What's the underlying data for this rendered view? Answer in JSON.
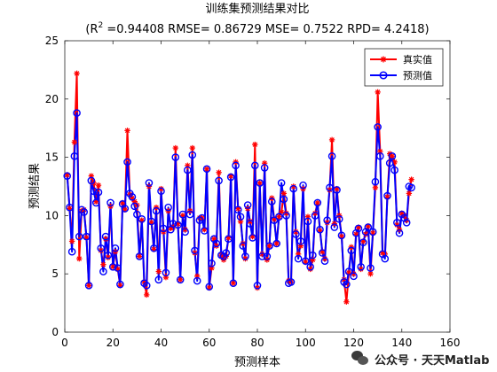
{
  "chart_data": {
    "type": "line",
    "title": "训练集预测结果对比",
    "subtitle_parts": {
      "prefix": "(R",
      "sup": "2",
      "rest": " =0.94408 RMSE= 0.86729 MSE= 0.7522 RPD= 4.2418)"
    },
    "xlabel": "预测样本",
    "ylabel": "预测结果",
    "xlim": [
      0,
      160
    ],
    "ylim": [
      0,
      25
    ],
    "xticks": [
      "0",
      "20",
      "40",
      "60",
      "80",
      "100",
      "120",
      "140",
      "160"
    ],
    "yticks": [
      "0",
      "5",
      "10",
      "15",
      "20",
      "25"
    ],
    "legend_position": "top-right",
    "series": [
      {
        "name": "真实值",
        "color": "#ff0000",
        "marker": "asterisk",
        "values": [
          13.5,
          10.6,
          7.8,
          16.3,
          22.2,
          6.3,
          10.4,
          10.5,
          8.1,
          4.0,
          13.4,
          12.8,
          11.2,
          12.6,
          7.0,
          5.8,
          8.0,
          6.4,
          10.8,
          5.6,
          6.9,
          5.4,
          4.0,
          11.1,
          10.5,
          17.3,
          11.8,
          11.5,
          11.2,
          10.9,
          6.5,
          9.6,
          4.3,
          3.2,
          12.5,
          9.4,
          7.1,
          10.7,
          5.2,
          12.3,
          8.6,
          4.7,
          10.4,
          8.9,
          9.0,
          15.8,
          9.3,
          4.5,
          10.0,
          8.8,
          14.3,
          10.4,
          15.8,
          6.8,
          4.8,
          9.8,
          9.8,
          8.8,
          14.0,
          3.8,
          5.5,
          8.0,
          7.4,
          13.7,
          6.6,
          6.2,
          6.5,
          8.1,
          13.4,
          4.2,
          14.6,
          10.6,
          9.5,
          7.6,
          6.3,
          10.6,
          9.5,
          8.2,
          16.1,
          3.8,
          12.8,
          6.7,
          14.5,
          6.2,
          7.4,
          11.5,
          9.7,
          7.6,
          9.9,
          10.3,
          11.9,
          10.2,
          4.4,
          4.3,
          12.5,
          8.6,
          6.7,
          7.4,
          12.3,
          6.0,
          9.9,
          5.4,
          6.2,
          10.2,
          11.1,
          8.7,
          6.9,
          6.3,
          9.4,
          12.2,
          16.5,
          9.3,
          12.3,
          10.0,
          8.2,
          4.5,
          2.6,
          5.1,
          7.3,
          5.0,
          8.4,
          9.0,
          5.4,
          7.8,
          8.4,
          9.1,
          5.0,
          8.5,
          12.4,
          20.6,
          15.5,
          6.8,
          6.7,
          11.6,
          15.3,
          15.1,
          14.6,
          9.2,
          8.8,
          10.2,
          10.0,
          9.6,
          11.9,
          13.1
        ]
      },
      {
        "name": "预测值",
        "color": "#0000ff",
        "marker": "circle",
        "values": [
          13.4,
          10.7,
          6.9,
          15.1,
          18.8,
          8.2,
          10.5,
          10.3,
          8.2,
          4.0,
          13.0,
          12.1,
          11.1,
          12.0,
          7.2,
          5.2,
          8.2,
          6.6,
          11.1,
          5.6,
          7.2,
          5.5,
          4.1,
          11.0,
          10.6,
          14.6,
          11.9,
          11.6,
          10.8,
          10.1,
          6.5,
          9.7,
          4.2,
          4.0,
          12.8,
          9.5,
          7.2,
          10.4,
          4.5,
          12.1,
          8.9,
          5.1,
          10.7,
          8.8,
          9.3,
          15.0,
          9.2,
          4.5,
          10.1,
          8.6,
          13.9,
          10.1,
          15.2,
          7.0,
          4.4,
          9.6,
          9.8,
          8.7,
          14.0,
          3.9,
          5.9,
          8.0,
          7.6,
          13.0,
          6.6,
          6.5,
          6.8,
          8.0,
          13.3,
          4.2,
          14.3,
          10.5,
          9.9,
          7.4,
          6.5,
          10.9,
          9.3,
          8.1,
          14.3,
          4.0,
          12.8,
          6.5,
          14.1,
          6.5,
          7.4,
          11.2,
          9.6,
          7.6,
          9.9,
          12.8,
          11.4,
          10.0,
          4.2,
          4.3,
          12.3,
          8.4,
          6.3,
          7.8,
          12.6,
          6.1,
          9.5,
          5.6,
          6.6,
          10.0,
          11.1,
          8.8,
          6.8,
          6.1,
          9.6,
          12.4,
          15.1,
          9.0,
          12.2,
          9.7,
          8.3,
          4.3,
          4.1,
          5.2,
          7.0,
          4.8,
          8.5,
          8.9,
          5.6,
          7.7,
          8.6,
          9.0,
          5.5,
          8.6,
          12.9,
          17.6,
          15.1,
          6.7,
          6.3,
          11.7,
          14.5,
          15.1,
          13.9,
          9.4,
          8.5,
          10.1,
          9.8,
          9.4,
          12.5,
          12.4
        ]
      }
    ]
  },
  "watermark": {
    "text": "公众号 · 天天Matlab",
    "icon": "wechat-icon"
  }
}
